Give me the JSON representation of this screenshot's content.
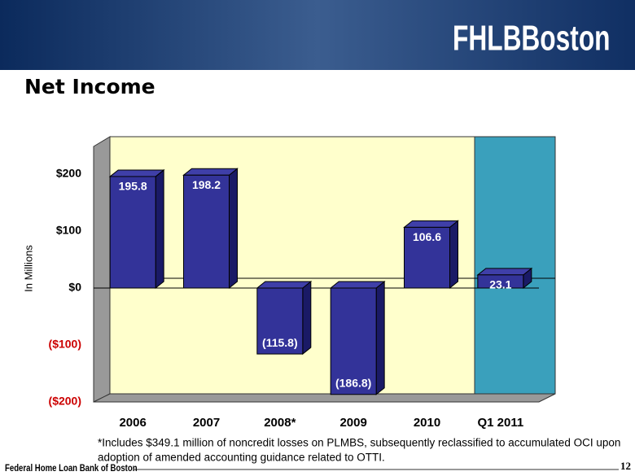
{
  "header": {
    "logo": "FHLBBoston"
  },
  "chart_data": {
    "type": "bar",
    "title": "Net Income",
    "y_label": "In Millions",
    "categories": [
      "2006",
      "2007",
      "2008*",
      "2009",
      "2010",
      "Q1 2011"
    ],
    "values": [
      195.8,
      198.2,
      -115.8,
      -186.8,
      106.6,
      23.1
    ],
    "value_labels": [
      "195.8",
      "198.2",
      "(115.8)",
      "(186.8)",
      "106.6",
      "23.1"
    ],
    "color": "#333399",
    "ylim": [
      -200,
      250
    ],
    "yticks": [
      {
        "value": 200,
        "label": "$200"
      },
      {
        "value": 100,
        "label": "$100"
      },
      {
        "value": 0,
        "label": "$0"
      },
      {
        "value": -100,
        "label": "($100)"
      },
      {
        "value": -200,
        "label": "($200)"
      }
    ],
    "footnote": [
      "*Includes $349.1 million of noncredit losses on PLMBS, subsequently reclassified to accumulated OCI upon",
      "adoption of amended accounting guidance related to OTTI."
    ]
  },
  "footer": {
    "text": "Federal Home Loan Bank of Boston",
    "page": "12"
  }
}
